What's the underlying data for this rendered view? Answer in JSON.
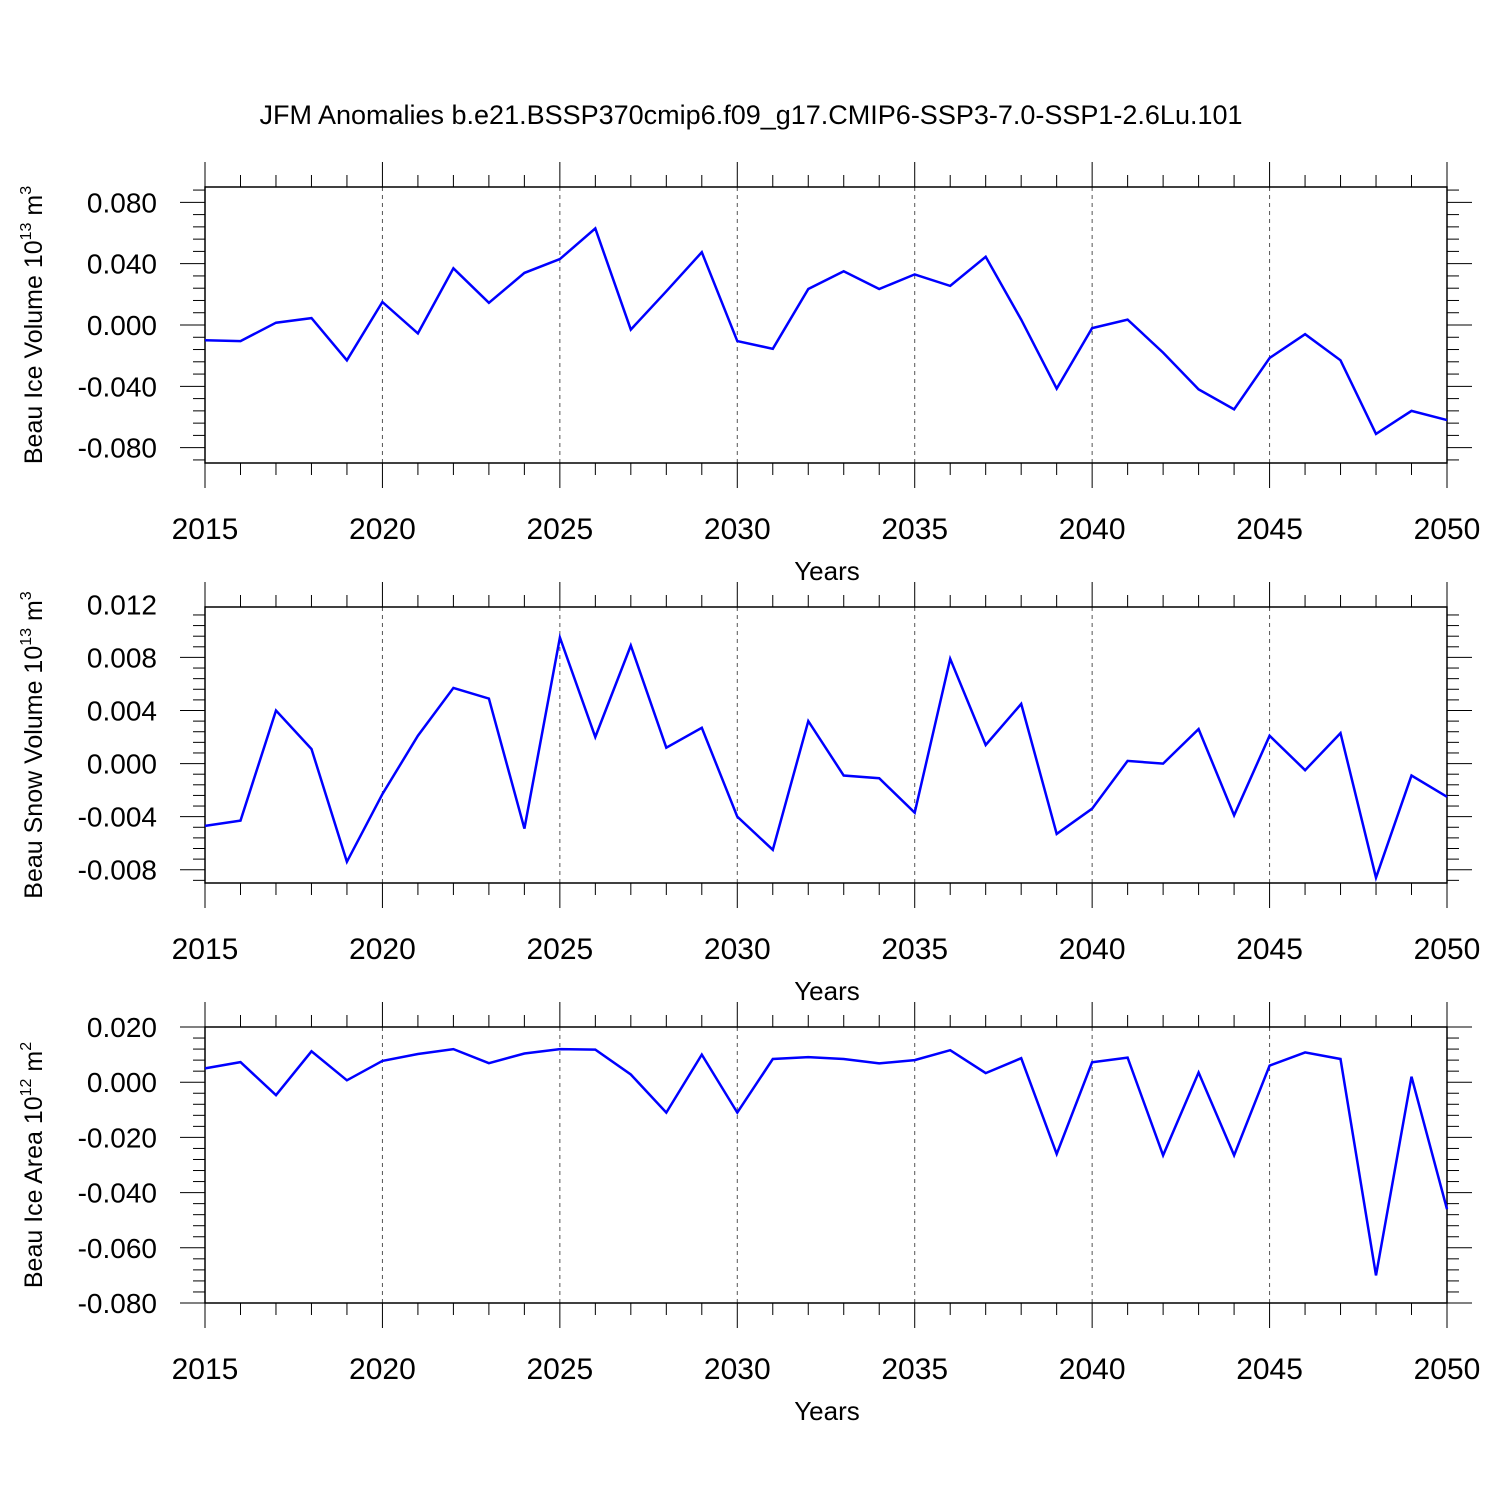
{
  "title": "JFM Anomalies b.e21.BSSP370cmip6.f09_g17.CMIP6-SSP3-7.0-SSP1-2.6Lu.101",
  "line_color": "#0000ff",
  "chart_data": [
    {
      "type": "line",
      "ylabel": "Beau Ice Volume 10",
      "ylabel_exp": "13",
      "ylabel_unit": " m",
      "ylabel_unit_exp": "3",
      "xlabel": "Years",
      "xlim": [
        2015,
        2050
      ],
      "ylim": [
        -0.09,
        0.09
      ],
      "yticks": [
        -0.08,
        -0.04,
        0.0,
        0.04,
        0.08
      ],
      "ytick_labels": [
        "-0.080",
        "-0.040",
        "0.000",
        "0.040",
        "0.080"
      ],
      "xticks": [
        2015,
        2020,
        2025,
        2030,
        2035,
        2040,
        2045,
        2050
      ],
      "grid_x": [
        2020,
        2025,
        2030,
        2035,
        2040,
        2045
      ],
      "x": [
        2015,
        2016,
        2017,
        2018,
        2019,
        2020,
        2021,
        2022,
        2023,
        2024,
        2025,
        2026,
        2027,
        2028,
        2029,
        2030,
        2031,
        2032,
        2033,
        2034,
        2035,
        2036,
        2037,
        2038,
        2039,
        2040,
        2041,
        2042,
        2043,
        2044,
        2045,
        2046,
        2047,
        2048,
        2049,
        2050
      ],
      "values": [
        -0.01,
        -0.0105,
        0.0015,
        0.0045,
        -0.023,
        0.015,
        -0.0055,
        0.037,
        0.0145,
        0.034,
        0.043,
        0.063,
        -0.003,
        0.022,
        0.0475,
        -0.0105,
        -0.0155,
        0.0235,
        0.035,
        0.0235,
        0.033,
        0.0255,
        0.0445,
        0.0035,
        -0.0415,
        -0.002,
        0.0035,
        -0.018,
        -0.042,
        -0.055,
        -0.0215,
        -0.006,
        -0.023,
        -0.071,
        -0.056,
        -0.062
      ]
    },
    {
      "type": "line",
      "ylabel": "Beau Snow Volume 10",
      "ylabel_exp": "13",
      "ylabel_unit": " m",
      "ylabel_unit_exp": "3",
      "xlabel": "Years",
      "xlim": [
        2015,
        2050
      ],
      "ylim": [
        -0.009,
        0.0118
      ],
      "yticks": [
        -0.008,
        -0.004,
        0.0,
        0.004,
        0.008,
        0.012
      ],
      "ytick_labels": [
        "-0.008",
        "-0.004",
        "0.000",
        "0.004",
        "0.008",
        "0.012"
      ],
      "xticks": [
        2015,
        2020,
        2025,
        2030,
        2035,
        2040,
        2045,
        2050
      ],
      "grid_x": [
        2020,
        2025,
        2030,
        2035,
        2040,
        2045
      ],
      "x": [
        2015,
        2016,
        2017,
        2018,
        2019,
        2020,
        2021,
        2022,
        2023,
        2024,
        2025,
        2026,
        2027,
        2028,
        2029,
        2030,
        2031,
        2032,
        2033,
        2034,
        2035,
        2036,
        2037,
        2038,
        2039,
        2040,
        2041,
        2042,
        2043,
        2044,
        2045,
        2046,
        2047,
        2048,
        2049,
        2050
      ],
      "values": [
        -0.0047,
        -0.0043,
        0.004,
        0.0011,
        -0.0074,
        -0.0023,
        0.0021,
        0.0057,
        0.0049,
        -0.0049,
        0.0095,
        0.002,
        0.0089,
        0.0012,
        0.0027,
        -0.004,
        -0.0065,
        0.0032,
        -0.0009,
        -0.0011,
        -0.0037,
        0.0079,
        0.0014,
        0.0045,
        -0.0053,
        -0.0034,
        0.0002,
        0.0,
        0.0026,
        -0.0039,
        0.0021,
        -0.0005,
        0.0023,
        -0.0086,
        -0.0009,
        -0.0025
      ]
    },
    {
      "type": "line",
      "ylabel": "Beau Ice Area 10",
      "ylabel_exp": "12",
      "ylabel_unit": " m",
      "ylabel_unit_exp": "2",
      "xlabel": "Years",
      "xlim": [
        2015,
        2050
      ],
      "ylim": [
        -0.08,
        0.02
      ],
      "yticks": [
        -0.08,
        -0.06,
        -0.04,
        -0.02,
        0.0,
        0.02
      ],
      "ytick_labels": [
        "-0.080",
        "-0.060",
        "-0.040",
        "-0.020",
        "0.000",
        "0.020"
      ],
      "xticks": [
        2015,
        2020,
        2025,
        2030,
        2035,
        2040,
        2045,
        2050
      ],
      "grid_x": [
        2020,
        2025,
        2030,
        2035,
        2040,
        2045
      ],
      "x": [
        2015,
        2016,
        2017,
        2018,
        2019,
        2020,
        2021,
        2022,
        2023,
        2024,
        2025,
        2026,
        2027,
        2028,
        2029,
        2030,
        2031,
        2032,
        2033,
        2034,
        2035,
        2036,
        2037,
        2038,
        2039,
        2040,
        2041,
        2042,
        2043,
        2044,
        2045,
        2046,
        2047,
        2048,
        2049,
        2050
      ],
      "values": [
        0.005,
        0.0073,
        -0.0047,
        0.0112,
        0.0007,
        0.0077,
        0.0102,
        0.012,
        0.0069,
        0.0104,
        0.012,
        0.0118,
        0.0028,
        -0.011,
        0.01,
        -0.011,
        0.0084,
        0.0091,
        0.0084,
        0.0068,
        0.008,
        0.0116,
        0.0033,
        0.0087,
        -0.026,
        0.0072,
        0.0089,
        -0.0265,
        0.0035,
        -0.0265,
        0.006,
        0.0108,
        0.0084,
        -0.07,
        0.002,
        -0.046
      ]
    }
  ]
}
